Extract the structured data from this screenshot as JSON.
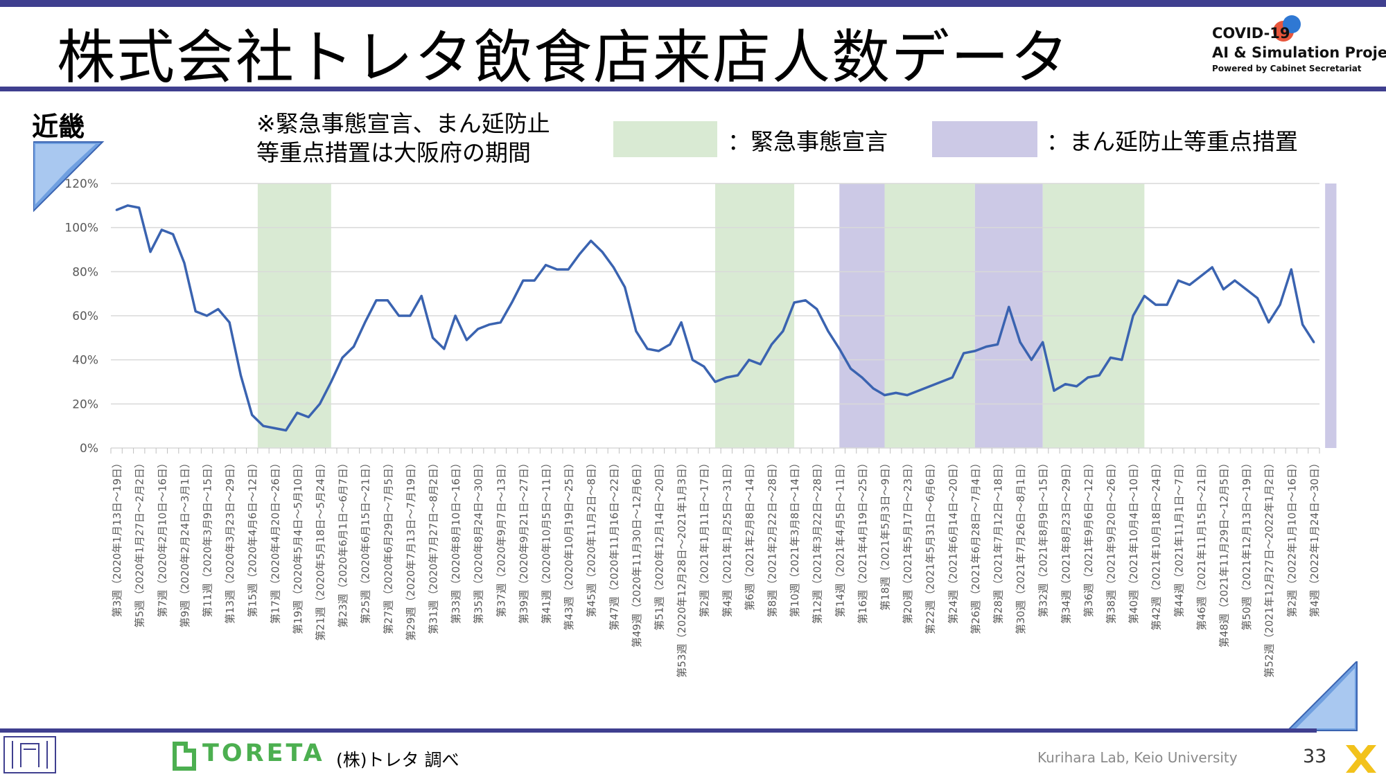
{
  "header": {
    "title": "株式会社トレタ飲食店来店人数データ",
    "logo": {
      "line1": "COVID-19",
      "line2": "AI & Simulation Project",
      "line3": "Powered by Cabinet Secretariat"
    }
  },
  "region_label": "近畿",
  "note_lines": [
    "※緊急事態宣言、まん延防止",
    "等重点措置は大阪府の期間"
  ],
  "legend": {
    "emergency": {
      "label": "：緊急事態宣言",
      "color": "#d9ead3"
    },
    "priority": {
      "label": "：まん延防止等重点措置",
      "color": "#ccc9e6"
    }
  },
  "footer": {
    "brand": "TORETA",
    "source": "(株)トレタ 調べ",
    "lab": "Kurihara Lab, Keio University",
    "page": "33"
  },
  "colors": {
    "accent_bar": "#3f3f8f",
    "line": "#3a63b0",
    "toreta_green": "#4caf50"
  },
  "chart_data": {
    "type": "line",
    "y_unit": "%",
    "ylim": [
      0,
      120
    ],
    "yticks": [
      "0%",
      "20%",
      "40%",
      "60%",
      "80%",
      "100%",
      "120%"
    ],
    "grid": true,
    "x_tick_labels": [
      "第3週（2020年1月13日～19日）",
      "第5週（2020年1月27日～2月2日）",
      "第7週（2020年2月10日～16日）",
      "第9週（2020年2月24日～3月1日）",
      "第11週（2020年3月9日～15日）",
      "第13週（2020年3月23日～29日）",
      "第15週（2020年4月6日～12日）",
      "第17週（2020年4月20日～26日）",
      "第19週（2020年5月4日～5月10日）",
      "第21週（2020年5月18日～5月24日）",
      "第23週（2020年6月1日～6月7日）",
      "第25週（2020年6月15日～21日）",
      "第27週（2020年6月29日～7月5日）",
      "第29週（2020年7月13日～7月19日）",
      "第31週（2020年7月27日～8月2日）",
      "第33週（2020年8月10日～16日）",
      "第35週（2020年8月24日～30日）",
      "第37週（2020年9月7日～13日）",
      "第39週（2020年9月21日～27日）",
      "第41週（2020年10月5日～11日）",
      "第43週（2020年10月19日～25日）",
      "第45週（2020年11月2日～8日）",
      "第47週（2020年11月16日～22日）",
      "第49週（2020年11月30日～12月6日）",
      "第51週（2020年12月14日～20日）",
      "第53週（2020年12月28日～2021年1月3日）",
      "第2週（2021年1月11日～17日）",
      "第4週（2021年1月25日～31日）",
      "第6週（2021年2月8日～14日）",
      "第8週（2021年2月22日～28日）",
      "第10週（2021年3月8日～14日）",
      "第12週（2021年3月22日～28日）",
      "第14週（2021年4月5日～11日）",
      "第16週（2021年4月19日～25日）",
      "第18週（2021年5月3日～9日）",
      "第20週（2021年5月17日～23日）",
      "第22週（2021年5月31日～6月6日）",
      "第24週（2021年6月14日～20日）",
      "第26週（2021年6月28日～7月4日）",
      "第28週（2021年7月12日～18日）",
      "第30週（2021年7月26日～8月1日）",
      "第32週（2021年8月9日～15日）",
      "第34週（2021年8月23日～29日）",
      "第36週（2021年9月6日～12日）",
      "第38週（2021年9月20日～26日）",
      "第40週（2021年10月4日～10日）",
      "第42週（2021年10月18日～24日）",
      "第44週（2021年11月1日～7日）",
      "第46週（2021年11月15日～21日）",
      "第48週（2021年11月29日～12月5日）",
      "第50週（2021年12月13日～19日）",
      "第52週（2021年12月27日～2022年1月2日）",
      "第2週（2022年1月10日～16日）",
      "第4週（2022年1月24日～30日）"
    ],
    "series": [
      {
        "values": [
          108,
          110,
          109,
          89,
          99,
          97,
          84,
          62,
          60,
          63,
          57,
          33,
          15,
          10,
          9,
          8,
          16,
          14,
          20,
          30,
          41,
          46,
          57,
          67,
          67,
          60,
          60,
          69,
          50,
          45,
          60,
          49,
          54,
          56,
          57,
          66,
          76,
          76,
          83,
          81,
          81,
          88,
          94,
          89,
          82,
          73,
          53,
          45,
          44,
          47,
          57,
          40,
          37,
          30,
          32,
          33,
          40,
          38,
          47,
          53,
          66,
          67,
          63,
          53,
          45,
          36,
          32,
          27,
          24,
          25,
          24,
          26,
          28,
          30,
          32,
          43,
          44,
          46,
          47,
          64,
          48,
          40,
          48,
          26,
          29,
          28,
          32,
          33,
          41,
          40,
          60,
          69,
          65,
          65,
          76,
          74,
          78,
          82,
          72,
          76,
          72,
          68,
          57,
          65,
          81,
          56,
          48
        ]
      }
    ],
    "shaded_periods": [
      {
        "type": "emergency",
        "start_index": 13,
        "end_index": 19.5
      },
      {
        "type": "emergency",
        "start_index": 53.5,
        "end_index": 60.5
      },
      {
        "type": "priority",
        "start_index": 64.5,
        "end_index": 68.5
      },
      {
        "type": "emergency",
        "start_index": 68.5,
        "end_index": 76.5
      },
      {
        "type": "priority",
        "start_index": 76.5,
        "end_index": 82.5
      },
      {
        "type": "emergency",
        "start_index": 82.5,
        "end_index": 91.5
      },
      {
        "type": "priority",
        "start_index": 107.5,
        "end_index": 108.5
      }
    ]
  }
}
